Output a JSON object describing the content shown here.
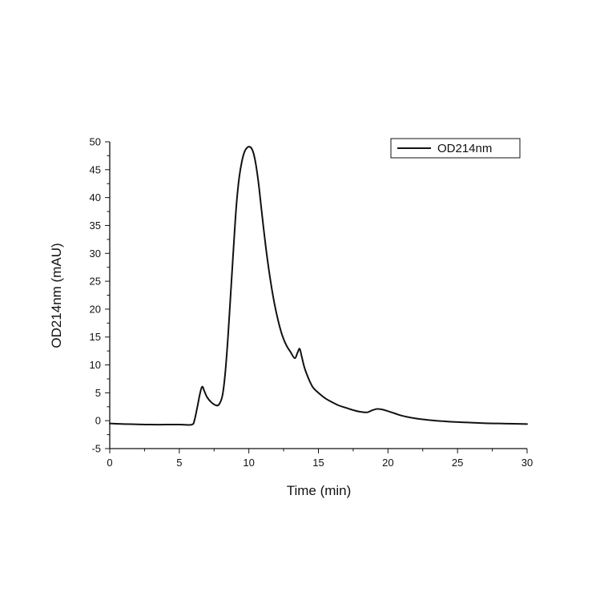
{
  "chart_data": {
    "type": "line",
    "title": "",
    "xlabel": "Time (min)",
    "ylabel": "OD214nm (mAU)",
    "xlim": [
      0,
      30
    ],
    "ylim": [
      -5,
      50
    ],
    "x_ticks": [
      0,
      5,
      10,
      15,
      20,
      25,
      30
    ],
    "y_ticks": [
      -5,
      0,
      5,
      10,
      15,
      20,
      25,
      30,
      35,
      40,
      45,
      50
    ],
    "grid": false,
    "legend_position": "top-right",
    "series": [
      {
        "name": "OD214nm",
        "color": "#111111",
        "x": [
          0,
          1,
          2,
          3,
          4,
          5,
          5.9,
          6.1,
          6.3,
          6.5,
          6.65,
          6.8,
          7.0,
          7.3,
          7.6,
          7.85,
          8.1,
          8.3,
          8.5,
          8.7,
          8.9,
          9.1,
          9.3,
          9.5,
          9.7,
          9.9,
          10.05,
          10.2,
          10.35,
          10.5,
          10.7,
          10.9,
          11.2,
          11.5,
          11.8,
          12.1,
          12.4,
          12.7,
          13.0,
          13.3,
          13.5,
          13.65,
          13.8,
          14.0,
          14.3,
          14.6,
          15.0,
          15.5,
          16.0,
          16.5,
          17.0,
          17.5,
          18.0,
          18.5,
          18.8,
          19.2,
          19.6,
          20.0,
          20.5,
          21.0,
          22.0,
          23.0,
          24.0,
          25.0,
          26.0,
          27.0,
          28.0,
          29.0,
          30.0
        ],
        "y": [
          -0.5,
          -0.6,
          -0.65,
          -0.7,
          -0.7,
          -0.7,
          -0.7,
          0.2,
          2.5,
          5.0,
          6.1,
          5.3,
          4.2,
          3.3,
          2.8,
          2.9,
          4.5,
          8.5,
          15.0,
          23.0,
          31.0,
          38.5,
          43.5,
          46.5,
          48.3,
          49.0,
          49.1,
          48.8,
          47.8,
          46.0,
          42.5,
          38.0,
          31.5,
          26.0,
          21.5,
          18.0,
          15.3,
          13.5,
          12.3,
          11.2,
          12.2,
          12.9,
          11.5,
          9.5,
          7.5,
          6.0,
          5.0,
          4.0,
          3.3,
          2.7,
          2.3,
          1.9,
          1.6,
          1.5,
          1.8,
          2.1,
          2.0,
          1.7,
          1.3,
          0.9,
          0.4,
          0.1,
          -0.1,
          -0.25,
          -0.35,
          -0.45,
          -0.5,
          -0.55,
          -0.6
        ]
      }
    ]
  }
}
